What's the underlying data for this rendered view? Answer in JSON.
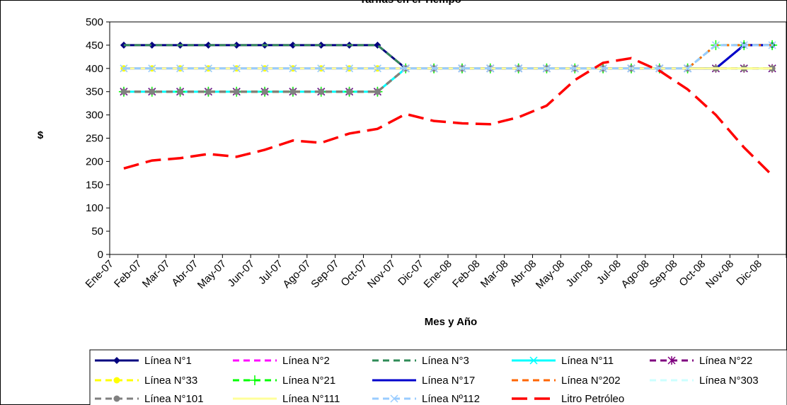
{
  "chart_data": {
    "type": "line",
    "title": "Tarifas en el Tiempo",
    "xlabel": "Mes y Año",
    "ylabel": "$",
    "ylim": [
      0,
      500
    ],
    "yticks": [
      "0",
      "50",
      "100",
      "150",
      "200",
      "250",
      "300",
      "350",
      "400",
      "450",
      "500"
    ],
    "categories": [
      "Ene-07",
      "Feb-07",
      "Mar-07",
      "Abr-07",
      "May-07",
      "Jun-07",
      "Jul-07",
      "Ago-07",
      "Sep-07",
      "Oct-07",
      "Nov-07",
      "Dic-07",
      "Ene-08",
      "Feb-08",
      "Mar-08",
      "Abr-08",
      "May-08",
      "Jun-08",
      "Jul-08",
      "Ago-08",
      "Sep-08",
      "Oct-08",
      "Nov-08",
      "Dic-08"
    ],
    "legend_position": "bottom",
    "grid": false,
    "series": [
      {
        "name": "Línea N°1",
        "color": "#00007f",
        "style": "solid",
        "marker": "diamond",
        "values": [
          450,
          450,
          450,
          450,
          450,
          450,
          450,
          450,
          450,
          450,
          400,
          400,
          400,
          400,
          400,
          400,
          400,
          400,
          400,
          400,
          400,
          400,
          450,
          450
        ]
      },
      {
        "name": "Línea N°2",
        "color": "#ff00ff",
        "style": "dash",
        "marker": "none",
        "values": [
          450,
          450,
          450,
          450,
          450,
          450,
          450,
          450,
          450,
          450,
          400,
          400,
          400,
          400,
          400,
          400,
          400,
          400,
          400,
          400,
          400,
          400,
          450,
          450
        ]
      },
      {
        "name": "Línea N°3",
        "color": "#2e8b57",
        "style": "dash",
        "marker": "none",
        "values": [
          450,
          450,
          450,
          450,
          450,
          450,
          450,
          450,
          450,
          450,
          400,
          400,
          400,
          400,
          400,
          400,
          400,
          400,
          400,
          400,
          400,
          400,
          450,
          450
        ]
      },
      {
        "name": "Línea N°11",
        "color": "#00ffff",
        "style": "solid",
        "marker": "x",
        "values": [
          350,
          350,
          350,
          350,
          350,
          350,
          350,
          350,
          350,
          350,
          400,
          400,
          400,
          400,
          400,
          400,
          400,
          400,
          400,
          400,
          400,
          400,
          400,
          400
        ]
      },
      {
        "name": "Línea N°22",
        "color": "#7f007f",
        "style": "dash",
        "marker": "star",
        "values": [
          350,
          350,
          350,
          350,
          350,
          350,
          350,
          350,
          350,
          350,
          400,
          400,
          400,
          400,
          400,
          400,
          400,
          400,
          400,
          400,
          400,
          400,
          400,
          400
        ]
      },
      {
        "name": "Línea N°33",
        "color": "#ffff00",
        "style": "dash",
        "marker": "circle",
        "values": [
          400,
          400,
          400,
          400,
          400,
          400,
          400,
          400,
          400,
          400,
          400,
          400,
          400,
          400,
          400,
          400,
          400,
          400,
          400,
          400,
          400,
          400,
          400,
          400
        ]
      },
      {
        "name": "Línea N°21",
        "color": "#00ff00",
        "style": "dash",
        "marker": "plus",
        "values": [
          350,
          350,
          350,
          350,
          350,
          350,
          350,
          350,
          350,
          350,
          400,
          400,
          400,
          400,
          400,
          400,
          400,
          400,
          400,
          400,
          400,
          450,
          450,
          450
        ]
      },
      {
        "name": "Línea N°17",
        "color": "#0000cc",
        "style": "solid",
        "marker": "none",
        "values": [
          400,
          400,
          400,
          400,
          400,
          400,
          400,
          400,
          400,
          400,
          400,
          400,
          400,
          400,
          400,
          400,
          400,
          400,
          400,
          400,
          400,
          400,
          450,
          450
        ]
      },
      {
        "name": "Línea N°202",
        "color": "#ff6600",
        "style": "dash",
        "marker": "none",
        "values": [
          350,
          350,
          350,
          350,
          350,
          350,
          350,
          350,
          350,
          350,
          400,
          400,
          400,
          400,
          400,
          400,
          400,
          400,
          400,
          400,
          400,
          450,
          450,
          450
        ]
      },
      {
        "name": "Línea N°303",
        "color": "#ccffff",
        "style": "dash",
        "marker": "none",
        "values": [
          400,
          400,
          400,
          400,
          400,
          400,
          400,
          400,
          400,
          400,
          400,
          400,
          400,
          400,
          400,
          400,
          400,
          400,
          400,
          400,
          400,
          450,
          450,
          450
        ]
      },
      {
        "name": "Línea N°101",
        "color": "#808080",
        "style": "dash",
        "marker": "circle",
        "values": [
          350,
          350,
          350,
          350,
          350,
          350,
          350,
          350,
          350,
          350,
          400,
          400,
          400,
          400,
          400,
          400,
          400,
          400,
          400,
          400,
          400,
          400,
          400,
          400
        ]
      },
      {
        "name": "Línea N°111",
        "color": "#ffff99",
        "style": "solid",
        "marker": "none",
        "values": [
          400,
          400,
          400,
          400,
          400,
          400,
          400,
          400,
          400,
          400,
          400,
          400,
          400,
          400,
          400,
          400,
          400,
          400,
          400,
          400,
          400,
          400,
          400,
          400
        ]
      },
      {
        "name": "Línea Nº112",
        "color": "#99ccff",
        "style": "dash",
        "marker": "x",
        "values": [
          400,
          400,
          400,
          400,
          400,
          400,
          400,
          400,
          400,
          400,
          400,
          400,
          400,
          400,
          400,
          400,
          400,
          400,
          400,
          400,
          400,
          450,
          450,
          450
        ]
      },
      {
        "name": "Litro Petróleo",
        "color": "#ff0000",
        "style": "longdash",
        "marker": "none",
        "values": [
          185,
          202,
          207,
          216,
          210,
          225,
          245,
          240,
          260,
          270,
          302,
          287,
          282,
          280,
          295,
          320,
          375,
          412,
          422,
          395,
          355,
          300,
          230,
          170
        ]
      }
    ]
  }
}
